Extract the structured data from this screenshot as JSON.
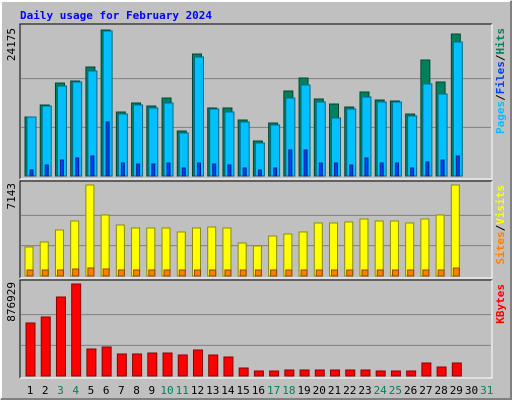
{
  "chart_data": [
    {
      "type": "bar",
      "title": "Daily usage for February 2024",
      "legend_separator": "/",
      "ylim": [
        0,
        24175
      ],
      "yticks": [
        24175
      ],
      "grid": true,
      "series": [
        {
          "name": "Hits",
          "color": "#00805c",
          "values": [
            9770,
            11757,
            15399,
            15730,
            18048,
            24175,
            10597,
            12088,
            11590,
            12916,
            7451,
            20201,
            11260,
            11260,
            9273,
            5795,
            8776,
            14075,
            16227,
            12750,
            11922,
            11425,
            13909,
            12584,
            12419,
            10266,
            19207,
            15565,
            23512,
            null,
            null
          ]
        },
        {
          "name": "Files",
          "color": "#0040ff",
          "values": [
            994,
            1822,
            2650,
            2981,
            3312,
            8942,
            2153,
            1987,
            1987,
            2153,
            1325,
            2153,
            1987,
            1822,
            1325,
            994,
            1325,
            4306,
            4306,
            2153,
            2153,
            1822,
            2981,
            2153,
            2153,
            1325,
            2318,
            2650,
            3312,
            null,
            null
          ]
        },
        {
          "name": "Pages",
          "color": "#00c0ff",
          "values": [
            9770,
            11590,
            14902,
            15565,
            17386,
            24010,
            10266,
            11757,
            11260,
            12088,
            7120,
            19704,
            11094,
            10597,
            8942,
            5464,
            8445,
            12916,
            15068,
            12253,
            9604,
            11094,
            13081,
            12253,
            12253,
            9935,
            15234,
            13578,
            22188,
            null,
            null
          ]
        }
      ]
    },
    {
      "type": "bar",
      "legend_separator": "/",
      "ylim": [
        0,
        7143
      ],
      "yticks": [
        7143
      ],
      "grid": true,
      "series": [
        {
          "name": "Visits",
          "color": "#ffff00",
          "values": [
            2276,
            2669,
            3611,
            4318,
            7143,
            4789,
            4003,
            3768,
            3768,
            3768,
            3454,
            3768,
            3846,
            3768,
            2591,
            2355,
            3140,
            3297,
            3454,
            4161,
            4161,
            4239,
            4475,
            4318,
            4318,
            4161,
            4475,
            4789,
            7143,
            null,
            null
          ]
        },
        {
          "name": "Sites",
          "color": "#ff8000",
          "values": [
            471,
            471,
            471,
            550,
            628,
            550,
            471,
            471,
            471,
            471,
            471,
            471,
            471,
            471,
            471,
            471,
            471,
            471,
            471,
            471,
            471,
            471,
            471,
            471,
            471,
            471,
            471,
            471,
            628,
            null,
            null
          ]
        }
      ]
    },
    {
      "type": "bar",
      "ylim": [
        0,
        876929
      ],
      "yticks": [
        876929
      ],
      "grid": true,
      "categories": [
        "1",
        "2",
        "3",
        "4",
        "5",
        "6",
        "7",
        "8",
        "9",
        "10",
        "11",
        "12",
        "13",
        "14",
        "15",
        "16",
        "17",
        "18",
        "19",
        "20",
        "21",
        "22",
        "23",
        "24",
        "25",
        "26",
        "27",
        "28",
        "29",
        "30",
        "31"
      ],
      "category_colors": [
        "#000000",
        "#000000",
        "#00805c",
        "#00805c",
        "#000000",
        "#000000",
        "#000000",
        "#000000",
        "#000000",
        "#00805c",
        "#00805c",
        "#000000",
        "#000000",
        "#000000",
        "#000000",
        "#000000",
        "#00805c",
        "#00805c",
        "#000000",
        "#000000",
        "#000000",
        "#000000",
        "#000000",
        "#00805c",
        "#00805c",
        "#000000",
        "#000000",
        "#000000",
        "#000000",
        "#000000",
        "#00805c"
      ],
      "series": [
        {
          "name": "KBytes",
          "color": "#ff0000",
          "values": [
            505196,
            562388,
            753028,
            876929,
            257364,
            276428,
            209704,
            209704,
            219236,
            219236,
            200172,
            247832,
            200172,
            181108,
            76256,
            47660,
            47660,
            57192,
            57192,
            57192,
            57192,
            57192,
            57192,
            47660,
            47660,
            47660,
            123916,
            85788,
            123916,
            null,
            null
          ]
        }
      ]
    }
  ]
}
